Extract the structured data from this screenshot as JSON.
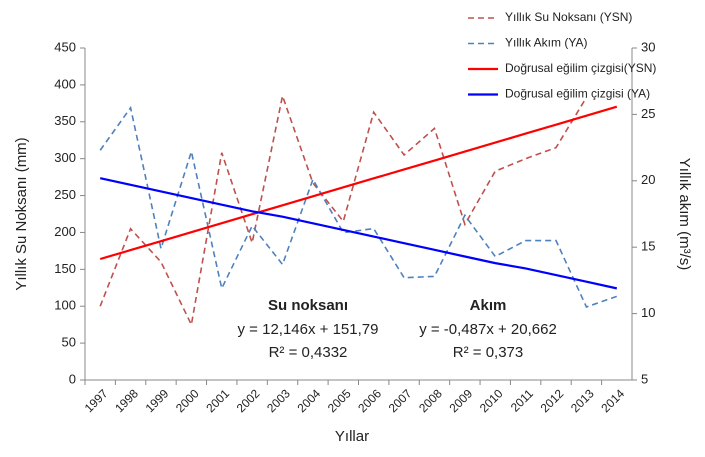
{
  "chart_data": {
    "type": "line",
    "x_label": "Yıllar",
    "y_label": "Yıllık Su Noksanı (mm)",
    "y2_label": "Yıllık akım (m³/s)",
    "categories": [
      "1997",
      "1998",
      "1999",
      "2000",
      "2001",
      "2002",
      "2003",
      "2004",
      "2005",
      "2006",
      "2007",
      "2008",
      "2009",
      "2010",
      "2011",
      "2012",
      "2013",
      "2014"
    ],
    "ylim": [
      0,
      450
    ],
    "yticks": [
      0,
      50,
      100,
      150,
      200,
      250,
      300,
      350,
      400,
      450
    ],
    "y2lim": [
      5,
      30
    ],
    "y2ticks": [
      5,
      10,
      15,
      20,
      25,
      30
    ],
    "legend": "top",
    "series": [
      {
        "name": "Yıllık Su Noksanı (YSN)",
        "color": "#c0504d",
        "style": "dashed",
        "axis": "y",
        "values": [
          100,
          205,
          160,
          75,
          308,
          186,
          385,
          267,
          215,
          363,
          305,
          341,
          211,
          283,
          300,
          315,
          383,
          null
        ]
      },
      {
        "name": "Yıllık Akım (YA)",
        "color": "#4f81bd",
        "style": "dashed",
        "axis": "y2",
        "values": [
          22.3,
          25.5,
          14.9,
          22.2,
          11.9,
          16.6,
          13.7,
          20.1,
          16.1,
          16.4,
          12.7,
          12.8,
          17.4,
          14.3,
          15.5,
          15.5,
          10.5,
          11.3
        ]
      },
      {
        "name": "Doğrusal eğilim çizgisi(YSN)",
        "color": "#ff0000",
        "style": "solid",
        "axis": "y",
        "values": [
          164.0,
          176.1,
          188.2,
          200.4,
          212.5,
          224.7,
          236.8,
          249.0,
          261.1,
          273.3,
          285.4,
          297.5,
          309.7,
          321.8,
          334.0,
          346.1,
          358.3,
          370.4
        ]
      },
      {
        "name": "Doğrusal eğilim çizgisi (YA)",
        "color": "#0000ff",
        "style": "solid",
        "axis": "y2",
        "values": [
          20.2,
          19.7,
          19.2,
          18.7,
          18.2,
          17.7,
          17.3,
          16.8,
          16.3,
          15.8,
          15.3,
          14.8,
          14.3,
          13.8,
          13.4,
          12.9,
          12.4,
          11.9
        ]
      }
    ],
    "annotations": [
      "Su noksanı",
      "y = 12,146x + 151,79",
      "R² = 0,4332",
      "Akım",
      "y = -0,487x + 20,662",
      "R² = 0,373"
    ]
  }
}
